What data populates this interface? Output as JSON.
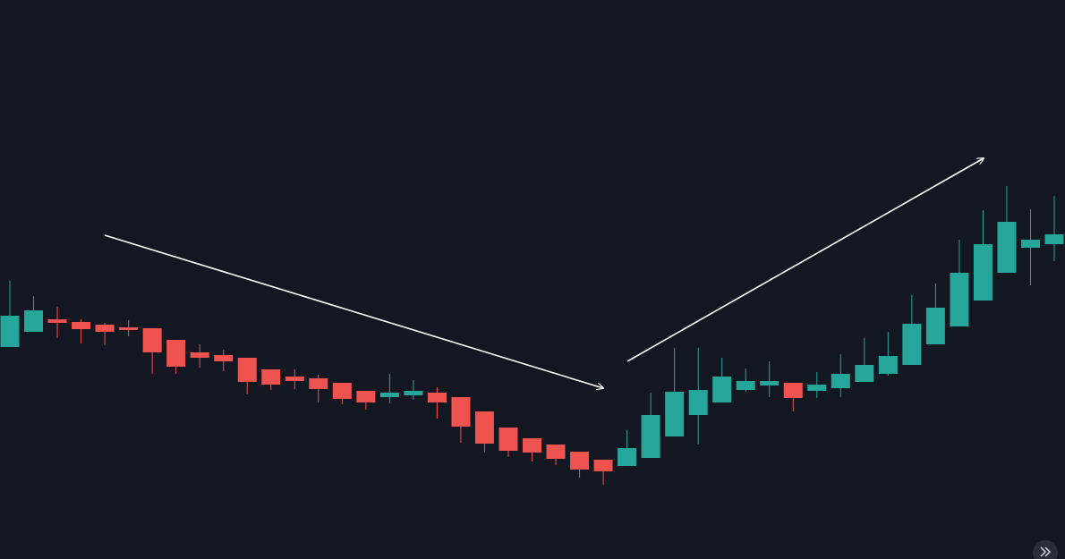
{
  "chart_data": {
    "type": "candlestick",
    "ylim": [
      0,
      625
    ],
    "up_color": "#26a69a",
    "down_color": "#ef5350",
    "open": [
      237,
      254,
      268,
      265,
      262,
      259,
      258,
      245,
      231,
      228,
      225,
      212,
      204,
      202,
      197,
      188,
      181,
      183,
      186,
      181,
      165,
      147,
      135,
      128,
      120,
      111,
      104,
      113,
      137,
      161,
      175,
      189,
      194,
      197,
      188,
      191,
      198,
      207,
      217,
      240,
      260,
      289,
      320,
      348,
      352
    ],
    "high": [
      311,
      294,
      282,
      268,
      264,
      267,
      258,
      245,
      240,
      234,
      225,
      212,
      212,
      206,
      197,
      188,
      207,
      200,
      192,
      181,
      165,
      147,
      135,
      128,
      120,
      111,
      144,
      186,
      236,
      236,
      225,
      213,
      221,
      197,
      209,
      229,
      247,
      254,
      295,
      308,
      357,
      390,
      417,
      391,
      406
    ],
    "low": [
      237,
      254,
      247,
      241,
      239,
      249,
      207,
      207,
      214,
      210,
      184,
      189,
      190,
      175,
      173,
      167,
      174,
      178,
      157,
      130,
      119,
      114,
      109,
      105,
      91,
      83,
      104,
      113,
      137,
      128,
      175,
      187,
      181,
      165,
      180,
      181,
      198,
      205,
      217,
      240,
      260,
      289,
      320,
      306,
      333
    ],
    "close": [
      272,
      278,
      264,
      257,
      254,
      256,
      231,
      215,
      225,
      221,
      198,
      195,
      199,
      190,
      179,
      175,
      186,
      188,
      175,
      148,
      129,
      121,
      119,
      112,
      100,
      98,
      124,
      161,
      187,
      189,
      204,
      199,
      199,
      180,
      195,
      207,
      217,
      227,
      263,
      281,
      320,
      352,
      377,
      357,
      363
    ]
  }
}
